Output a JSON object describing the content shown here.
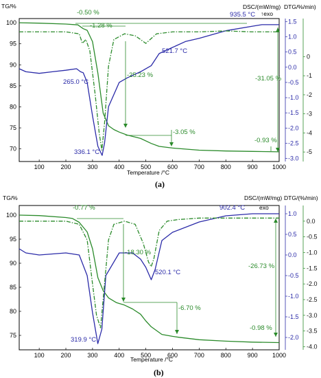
{
  "chart_data": [
    {
      "panel_label": "(a)",
      "type": "line",
      "xlabel": "Temperature /°C",
      "x_ticks": [
        100,
        200,
        300,
        400,
        500,
        600,
        700,
        800,
        900,
        1000
      ],
      "left_axis": {
        "label": "TG/%",
        "ylim": [
          67,
          101
        ],
        "ticks": [
          70,
          75,
          80,
          85,
          90,
          95,
          100
        ]
      },
      "right_axis_dsc": {
        "label": "DSC/(mW/mg)",
        "exo_label": "↑exo",
        "ylim": [
          -3.1,
          1.6
        ],
        "ticks": [
          "1.5",
          "1.0",
          "0.5",
          "0.0",
          "-0.5",
          "-1.0",
          "-1.5",
          "-2.0",
          "-2.5",
          "-3.0"
        ]
      },
      "right_axis_dtg": {
        "label": "DTG/%/min)",
        "ylim": [
          -5.5,
          2.0
        ],
        "ticks": [
          "0",
          "-1",
          "-2",
          "-3",
          "-4",
          "-5"
        ]
      },
      "series": [
        {
          "axis": "TG",
          "color": "#2a8a2a",
          "style": "solid",
          "x": [
            25,
            100,
            200,
            245,
            265,
            280,
            300,
            320,
            340,
            360,
            380,
            400,
            430,
            480,
            520,
            550,
            600,
            700,
            800,
            900,
            1000
          ],
          "y": [
            100,
            99.9,
            99.7,
            99.5,
            98.6,
            98.2,
            95.5,
            88.0,
            78.5,
            75.5,
            74.6,
            74.0,
            73.3,
            72.5,
            71.3,
            70.6,
            70.2,
            69.7,
            69.5,
            69.4,
            69.3
          ]
        },
        {
          "axis": "DSC",
          "color": "#2a2aa8",
          "style": "solid",
          "x": [
            25,
            50,
            100,
            150,
            200,
            240,
            255,
            265,
            280,
            300,
            320,
            336.1,
            345,
            360,
            400,
            430,
            480,
            520,
            550,
            600,
            650,
            700,
            800,
            900,
            935.5,
            1000
          ],
          "y": [
            -0.05,
            -0.15,
            -0.2,
            -0.15,
            -0.1,
            -0.05,
            -0.15,
            -0.18,
            -0.5,
            -1.6,
            -2.6,
            -2.9,
            -2.5,
            -1.3,
            -0.5,
            -0.35,
            -0.15,
            0.05,
            0.45,
            0.65,
            0.85,
            0.95,
            1.2,
            1.35,
            1.4,
            1.4
          ]
        },
        {
          "axis": "DTG",
          "color": "#2a8a2a",
          "style": "dashdot",
          "x": [
            25,
            100,
            200,
            250,
            262,
            275,
            290,
            310,
            325,
            335,
            345,
            360,
            380,
            420,
            460,
            480,
            500,
            520,
            540,
            600,
            700,
            800,
            900,
            1000
          ],
          "y": [
            1.3,
            1.3,
            1.3,
            1.2,
            0.7,
            0.9,
            0.3,
            -2.0,
            -4.0,
            -4.9,
            -3.5,
            -0.5,
            0.9,
            1.2,
            1.1,
            0.9,
            0.7,
            0.95,
            1.2,
            1.3,
            1.3,
            1.35,
            1.3,
            1.3
          ]
        }
      ],
      "annotations": [
        {
          "text": "-0.50 %",
          "color": "green"
        },
        {
          "text": "-1.28 %",
          "color": "green"
        },
        {
          "text": "935.5 °C",
          "color": "blue"
        },
        {
          "text": "521.7 °C",
          "color": "blue"
        },
        {
          "text": "265.0 °C",
          "color": "blue"
        },
        {
          "text": "-25.23 %",
          "color": "green"
        },
        {
          "text": "-31.05 %",
          "color": "green"
        },
        {
          "text": "-3.05 %",
          "color": "green"
        },
        {
          "text": "-0.93 %",
          "color": "green"
        },
        {
          "text": "336.1 °C",
          "color": "blue"
        }
      ]
    },
    {
      "panel_label": "(b)",
      "type": "line",
      "xlabel": "Temperature /°C",
      "x_ticks": [
        100,
        200,
        300,
        400,
        500,
        600,
        700,
        800,
        900,
        1000
      ],
      "left_axis": {
        "label": "TG/%",
        "ylim": [
          72,
          102
        ],
        "ticks": [
          75,
          80,
          85,
          90,
          95,
          100
        ]
      },
      "right_axis_dsc": {
        "label": "DSC/(mW/mg)",
        "exo_label": "exo",
        "ylim": [
          -2.3,
          1.2
        ],
        "ticks": [
          "1.0",
          "0.5",
          "0.0",
          "-0.5",
          "-1.0",
          "-1.5",
          "-2.0"
        ]
      },
      "right_axis_dtg": {
        "label": "DTG/(%/min)",
        "ylim": [
          -4.1,
          0.5
        ],
        "ticks": [
          "0.0",
          "-0.5",
          "-1.0",
          "-1.5",
          "-2.0",
          "-2.5",
          "-3.0",
          "-3.5",
          "-4.0"
        ]
      },
      "series": [
        {
          "axis": "TG",
          "color": "#2a8a2a",
          "style": "solid",
          "x": [
            25,
            100,
            200,
            225,
            250,
            280,
            300,
            320,
            340,
            360,
            390,
            420,
            450,
            480,
            500,
            520,
            560,
            600,
            625,
            700,
            800,
            900,
            1000
          ],
          "y": [
            100,
            99.9,
            99.5,
            99.3,
            98.5,
            96.5,
            93.0,
            87.0,
            84.3,
            82.8,
            81.8,
            81.3,
            80.5,
            79.4,
            78.0,
            76.8,
            75.2,
            74.8,
            74.6,
            74.1,
            73.8,
            73.6,
            73.5
          ]
        },
        {
          "axis": "DSC",
          "color": "#2a2aa8",
          "style": "solid",
          "x": [
            25,
            50,
            100,
            200,
            250,
            280,
            300,
            319.9,
            335,
            350,
            400,
            450,
            480,
            500,
            520.1,
            535,
            560,
            600,
            700,
            800,
            900,
            902.4,
            1000
          ],
          "y": [
            0.15,
            0.05,
            0.0,
            0.05,
            0.0,
            -0.5,
            -1.4,
            -2.15,
            -1.8,
            -0.5,
            0.05,
            0.05,
            -0.1,
            -0.3,
            -0.6,
            -0.35,
            0.35,
            0.55,
            0.8,
            0.95,
            1.0,
            1.0,
            1.0
          ]
        },
        {
          "axis": "DTG",
          "color": "#2a8a2a",
          "style": "dashdot",
          "x": [
            25,
            100,
            200,
            250,
            280,
            300,
            315,
            330,
            345,
            360,
            380,
            420,
            460,
            490,
            510,
            520,
            530,
            550,
            580,
            620,
            700,
            800,
            900,
            1000
          ],
          "y": [
            0.0,
            0.0,
            0.0,
            -0.1,
            -0.6,
            -2.0,
            -3.0,
            -3.4,
            -2.0,
            -0.6,
            -0.1,
            0.0,
            -0.1,
            -0.7,
            -1.3,
            -1.45,
            -1.2,
            -0.3,
            0.0,
            0.05,
            0.1,
            0.1,
            0.1,
            0.1
          ]
        }
      ],
      "annotations": [
        {
          "text": "-0.77 %",
          "color": "green"
        },
        {
          "text": "902.4 °C",
          "color": "blue"
        },
        {
          "text": "-18.30 %",
          "color": "green"
        },
        {
          "text": "520.1 °C",
          "color": "blue"
        },
        {
          "text": "-26.73 %",
          "color": "green"
        },
        {
          "text": "-6.70 %",
          "color": "green"
        },
        {
          "text": "-0.98 %",
          "color": "green"
        },
        {
          "text": "319.9 °C",
          "color": "blue"
        }
      ]
    }
  ]
}
